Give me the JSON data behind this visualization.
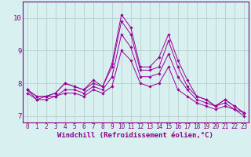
{
  "xlabel": "Windchill (Refroidissement éolien,°C)",
  "x": [
    0,
    1,
    2,
    3,
    4,
    5,
    6,
    7,
    8,
    9,
    10,
    11,
    12,
    13,
    14,
    15,
    16,
    17,
    18,
    19,
    20,
    21,
    22,
    23
  ],
  "series": [
    [
      7.8,
      7.6,
      7.6,
      7.7,
      8.0,
      7.9,
      7.8,
      8.0,
      7.9,
      8.6,
      10.1,
      9.7,
      8.5,
      8.5,
      8.8,
      9.5,
      8.7,
      8.1,
      7.6,
      7.5,
      7.3,
      7.5,
      7.3,
      7.1
    ],
    [
      7.8,
      7.6,
      7.6,
      7.7,
      8.0,
      7.9,
      7.8,
      8.1,
      7.9,
      8.5,
      9.9,
      9.5,
      8.4,
      8.4,
      8.5,
      9.3,
      8.5,
      7.9,
      7.6,
      7.5,
      7.3,
      7.5,
      7.3,
      7.1
    ],
    [
      7.8,
      7.5,
      7.6,
      7.6,
      7.8,
      7.8,
      7.7,
      7.9,
      7.8,
      8.2,
      9.5,
      9.1,
      8.2,
      8.2,
      8.3,
      8.9,
      8.2,
      7.8,
      7.5,
      7.4,
      7.3,
      7.4,
      7.2,
      7.1
    ],
    [
      7.7,
      7.5,
      7.5,
      7.6,
      7.7,
      7.7,
      7.6,
      7.8,
      7.7,
      7.9,
      9.0,
      8.7,
      8.0,
      7.9,
      8.0,
      8.5,
      7.8,
      7.6,
      7.4,
      7.3,
      7.2,
      7.3,
      7.2,
      7.0
    ]
  ],
  "line_color": "#990099",
  "marker": "D",
  "marker_size": 1.8,
  "bg_color": "#d8f0f0",
  "grid_color": "#b0c8c8",
  "ylim": [
    6.8,
    10.5
  ],
  "yticks": [
    7,
    8,
    9,
    10
  ],
  "xticks": [
    0,
    1,
    2,
    3,
    4,
    5,
    6,
    7,
    8,
    9,
    10,
    11,
    12,
    13,
    14,
    15,
    16,
    17,
    18,
    19,
    20,
    21,
    22,
    23
  ],
  "tick_label_size": 5.5,
  "xlabel_size": 6.5,
  "border_color": "#880088",
  "spine_color": "#880088"
}
